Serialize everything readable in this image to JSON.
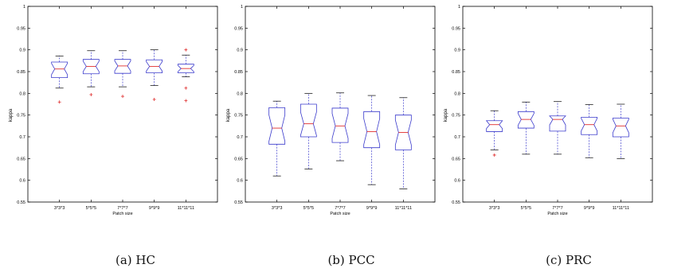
{
  "chart_data": [
    {
      "type": "boxplot",
      "ylabel": "kappa",
      "xlabel": "Patch size",
      "ylim": [
        0.55,
        1
      ],
      "yticks": [
        0.55,
        0.6,
        0.65,
        0.7,
        0.75,
        0.8,
        0.85,
        0.9,
        0.95,
        1
      ],
      "ytick_labels": [
        "0.55",
        "0.6",
        "0.65",
        "0.7",
        "0.75",
        "0.8",
        "0.85",
        "0.9",
        "0.95",
        "1"
      ],
      "notched": true,
      "grid": false,
      "colors": {
        "box": "#3a3acc",
        "median": "#e03030",
        "outlier": "#e03030"
      },
      "categories": [
        "3*3*3",
        "5*5*5",
        "7*7*7",
        "9*9*9",
        "11*11*11"
      ],
      "boxes": [
        {
          "whislo": 0.812,
          "q1": 0.836,
          "med": 0.856,
          "q3": 0.872,
          "whishi": 0.886,
          "fliers": [
            0.78
          ]
        },
        {
          "whislo": 0.815,
          "q1": 0.845,
          "med": 0.862,
          "q3": 0.878,
          "whishi": 0.898,
          "fliers": [
            0.797
          ]
        },
        {
          "whislo": 0.815,
          "q1": 0.846,
          "med": 0.863,
          "q3": 0.878,
          "whishi": 0.898,
          "fliers": [
            0.793
          ]
        },
        {
          "whislo": 0.818,
          "q1": 0.847,
          "med": 0.862,
          "q3": 0.877,
          "whishi": 0.9,
          "fliers": [
            0.786
          ]
        },
        {
          "whislo": 0.838,
          "q1": 0.847,
          "med": 0.857,
          "q3": 0.867,
          "whishi": 0.888,
          "fliers": [
            0.9,
            0.812,
            0.783
          ]
        }
      ]
    },
    {
      "type": "boxplot",
      "ylabel": "kappa",
      "xlabel": "Patch size",
      "ylim": [
        0.55,
        1
      ],
      "yticks": [
        0.55,
        0.6,
        0.65,
        0.7,
        0.75,
        0.8,
        0.85,
        0.9,
        0.95,
        1
      ],
      "ytick_labels": [
        "0.55",
        "0.6",
        "0.65",
        "0.7",
        "0.75",
        "0.8",
        "0.85",
        "0.9",
        "0.95",
        "1"
      ],
      "notched": true,
      "grid": false,
      "colors": {
        "box": "#3a3acc",
        "median": "#e03030",
        "outlier": "#e03030"
      },
      "categories": [
        "3*3*3",
        "5*5*5",
        "7*7*7",
        "9*9*9",
        "11*11*11"
      ],
      "boxes": [
        {
          "whislo": 0.61,
          "q1": 0.683,
          "med": 0.72,
          "q3": 0.767,
          "whishi": 0.782,
          "fliers": []
        },
        {
          "whislo": 0.626,
          "q1": 0.7,
          "med": 0.73,
          "q3": 0.775,
          "whishi": 0.8,
          "fliers": []
        },
        {
          "whislo": 0.645,
          "q1": 0.687,
          "med": 0.725,
          "q3": 0.766,
          "whishi": 0.801,
          "fliers": []
        },
        {
          "whislo": 0.59,
          "q1": 0.675,
          "med": 0.712,
          "q3": 0.758,
          "whishi": 0.795,
          "fliers": []
        },
        {
          "whislo": 0.58,
          "q1": 0.67,
          "med": 0.71,
          "q3": 0.75,
          "whishi": 0.79,
          "fliers": []
        }
      ]
    },
    {
      "type": "boxplot",
      "ylabel": "kappa",
      "xlabel": "Patch size",
      "ylim": [
        0.55,
        1
      ],
      "yticks": [
        0.55,
        0.6,
        0.65,
        0.7,
        0.75,
        0.8,
        0.85,
        0.9,
        0.95,
        1
      ],
      "ytick_labels": [
        "0.55",
        "0.6",
        "0.65",
        "0.7",
        "0.75",
        "0.8",
        "0.85",
        "0.9",
        "0.95",
        "1"
      ],
      "notched": true,
      "grid": false,
      "colors": {
        "box": "#3a3acc",
        "median": "#e03030",
        "outlier": "#e03030"
      },
      "categories": [
        "3*3*3",
        "5*5*5",
        "7*7*7",
        "9*9*9",
        "11*11*11"
      ],
      "boxes": [
        {
          "whislo": 0.67,
          "q1": 0.712,
          "med": 0.728,
          "q3": 0.737,
          "whishi": 0.76,
          "fliers": [
            0.658
          ]
        },
        {
          "whislo": 0.66,
          "q1": 0.72,
          "med": 0.74,
          "q3": 0.758,
          "whishi": 0.78,
          "fliers": []
        },
        {
          "whislo": 0.66,
          "q1": 0.713,
          "med": 0.74,
          "q3": 0.748,
          "whishi": 0.781,
          "fliers": []
        },
        {
          "whislo": 0.652,
          "q1": 0.705,
          "med": 0.728,
          "q3": 0.745,
          "whishi": 0.774,
          "fliers": []
        },
        {
          "whislo": 0.65,
          "q1": 0.7,
          "med": 0.725,
          "q3": 0.743,
          "whishi": 0.775,
          "fliers": []
        }
      ]
    }
  ],
  "captions": [
    "(a) HC",
    "(b) PCC",
    "(c) PRC"
  ]
}
